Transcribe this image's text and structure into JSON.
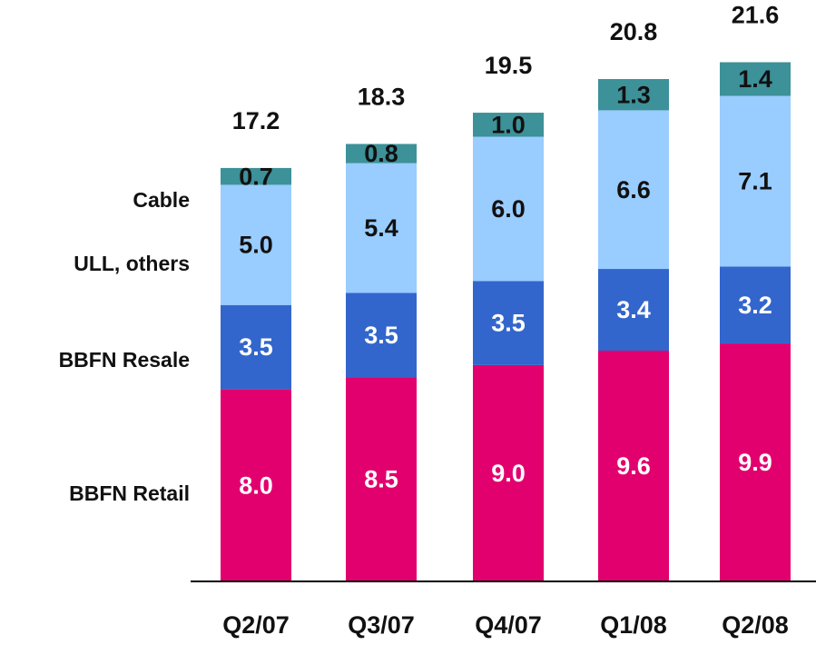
{
  "chart_data": {
    "type": "stacked_bar",
    "categories": [
      "Q2/07",
      "Q3/07",
      "Q4/07",
      "Q1/08",
      "Q2/08"
    ],
    "series": [
      {
        "name": "BBFN Retail",
        "color": "#e2006f",
        "label_color": "#ffffff",
        "values": [
          8.0,
          8.5,
          9.0,
          9.6,
          9.9
        ],
        "value_labels": [
          "8.0",
          "8.5",
          "9.0",
          "9.6",
          "9.9"
        ]
      },
      {
        "name": "BBFN Resale",
        "color": "#3366cc",
        "label_color": "#ffffff",
        "values": [
          3.5,
          3.5,
          3.5,
          3.4,
          3.2
        ],
        "value_labels": [
          "3.5",
          "3.5",
          "3.5",
          "3.4",
          "3.2"
        ]
      },
      {
        "name": "ULL, others",
        "color": "#99ccff",
        "label_color": "#111111",
        "values": [
          5.0,
          5.4,
          6.0,
          6.6,
          7.1
        ],
        "value_labels": [
          "5.0",
          "5.4",
          "6.0",
          "6.6",
          "7.1"
        ]
      },
      {
        "name": "Cable",
        "color": "#3d9199",
        "label_color": "#111111",
        "values": [
          0.7,
          0.8,
          1.0,
          1.3,
          1.4
        ],
        "value_labels": [
          "0.7",
          "0.8",
          "1.0",
          "1.3",
          "1.4"
        ]
      }
    ],
    "totals": [
      17.2,
      18.3,
      19.5,
      20.8,
      21.6
    ],
    "ylim": [
      0,
      24
    ]
  }
}
